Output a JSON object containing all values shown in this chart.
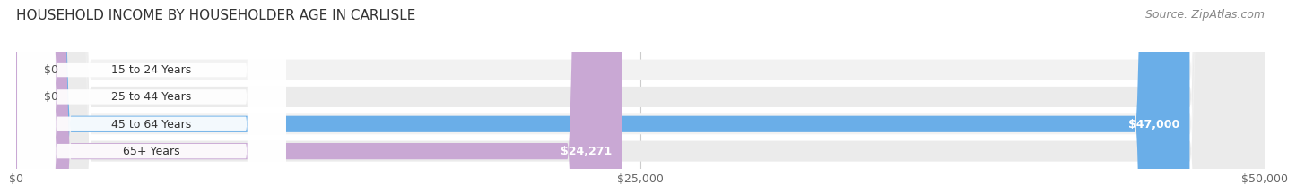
{
  "title": "HOUSEHOLD INCOME BY HOUSEHOLDER AGE IN CARLISLE",
  "source": "Source: ZipAtlas.com",
  "categories": [
    "15 to 24 Years",
    "25 to 44 Years",
    "45 to 64 Years",
    "65+ Years"
  ],
  "values": [
    0,
    0,
    47000,
    24271
  ],
  "labels": [
    "$0",
    "$0",
    "$47,000",
    "$24,271"
  ],
  "bar_colors": [
    "#f5c899",
    "#f5a0a0",
    "#6aaee8",
    "#c9a8d4"
  ],
  "row_colors": [
    "#f2f2f2",
    "#ebebeb",
    "#f2f2f2",
    "#ebebeb"
  ],
  "xlim": [
    0,
    50000
  ],
  "xticks": [
    0,
    25000,
    50000
  ],
  "xticklabels": [
    "$0",
    "$25,000",
    "$50,000"
  ],
  "background_color": "#ffffff",
  "title_fontsize": 11,
  "label_fontsize": 9,
  "tick_fontsize": 9,
  "source_fontsize": 9,
  "bar_height": 0.6
}
